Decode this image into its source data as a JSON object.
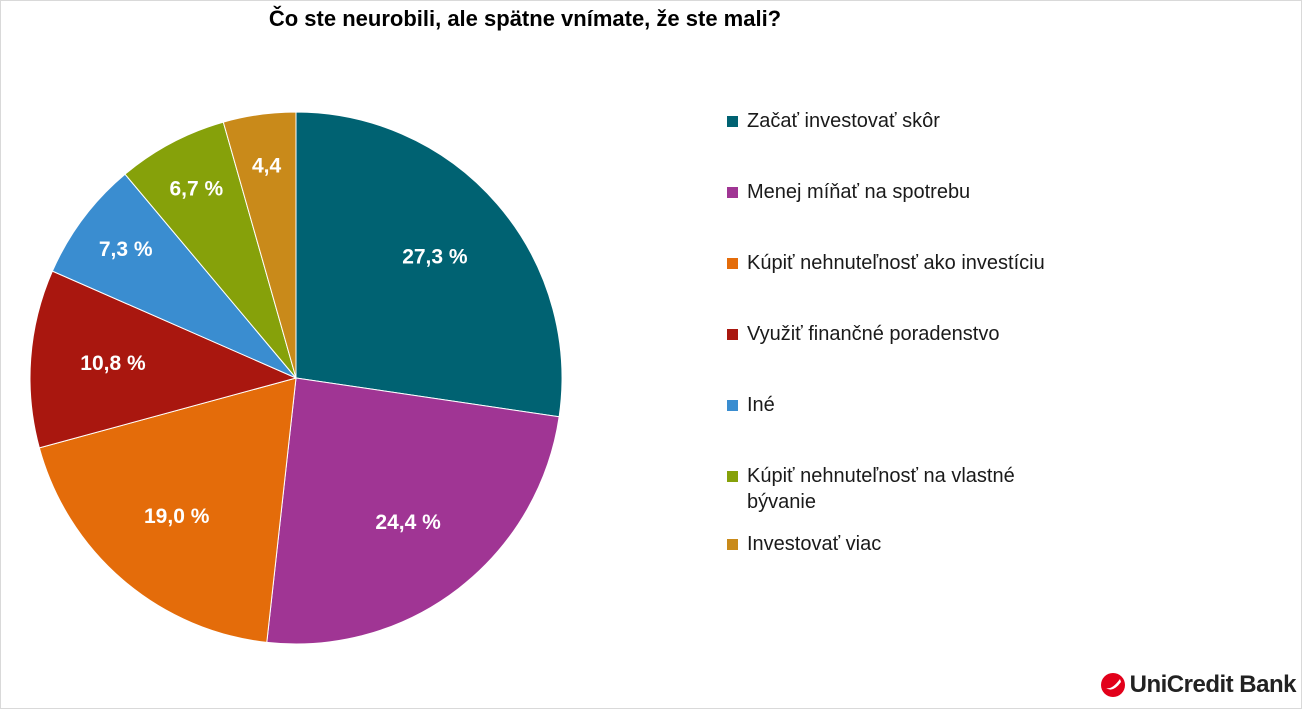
{
  "chart_data": {
    "type": "pie",
    "title": "Čo ste neurobili, ale spätne vnímate, že ste mali?",
    "categories": [
      "Začať investovať skôr",
      "Menej míňať na spotrebu",
      "Kúpiť nehnuteľnosť ako investíciu",
      "Využiť finančné poradenstvo",
      "Iné",
      "Kúpiť nehnuteľnosť na vlastné bývanie",
      "Investovať viac"
    ],
    "values": [
      27.3,
      24.4,
      19.0,
      10.8,
      7.3,
      6.7,
      4.4
    ],
    "data_labels": [
      "27,3 %",
      "24,4 %",
      "19,0 %",
      "10,8 %",
      "7,3 %",
      "6,7 %",
      "4,4"
    ],
    "colors": [
      "#006272",
      "#a03594",
      "#e46c0a",
      "#a9170f",
      "#3a8dd0",
      "#86a10a",
      "#c98a1a"
    ],
    "legend_position": "right"
  },
  "brand": {
    "name": "UniCredit Bank",
    "logo_icon": "unicredit-logo-icon",
    "logo_color": "#e2001a"
  }
}
